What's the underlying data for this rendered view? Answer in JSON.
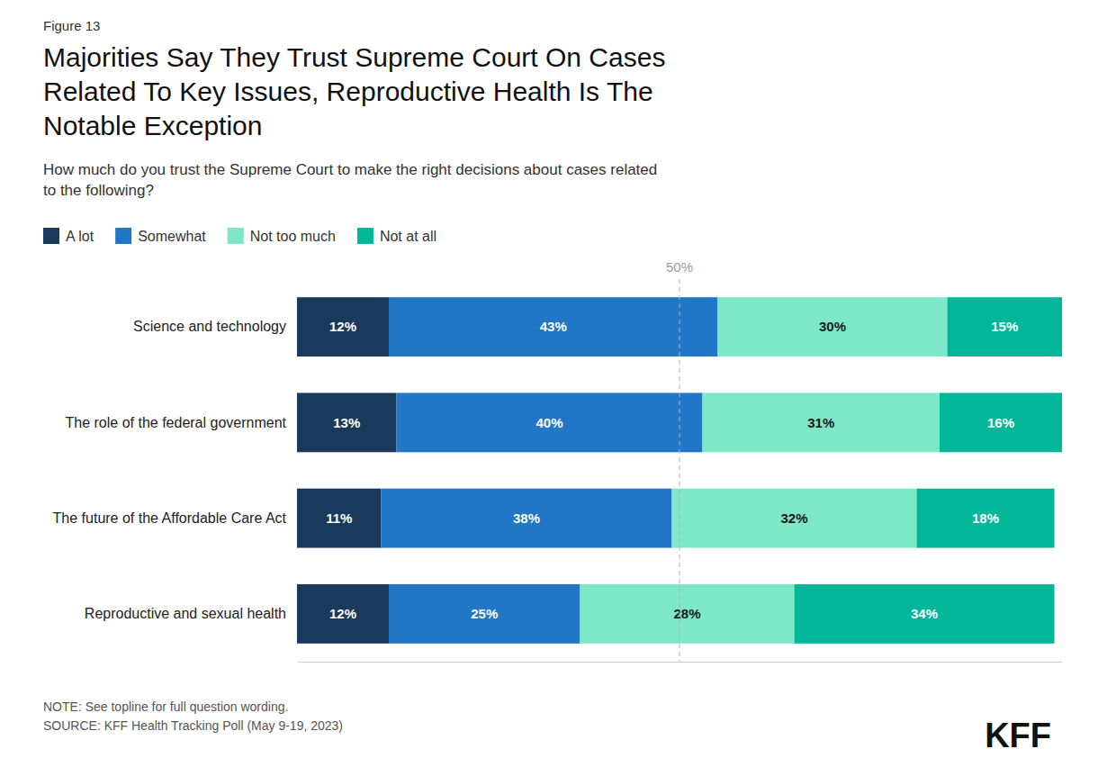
{
  "chart_data": {
    "type": "bar",
    "orientation": "horizontal",
    "stacked": true,
    "data_labels": true,
    "figure_label": "Figure 13",
    "title": "Majorities Say They Trust Supreme Court On Cases\nRelated To Key Issues, Reproductive Health Is The\nNotable Exception",
    "subtitle": "How much do you trust the Supreme Court to make the right decisions about cases related\nto the following?",
    "categories": [
      "Science and technology",
      "The role of the federal government",
      "The future of the Affordable Care Act",
      "Reproductive and sexual health"
    ],
    "series": [
      {
        "name": "A lot",
        "color": "#1a3a5c",
        "values": [
          12,
          13,
          11,
          12
        ],
        "value_labels": [
          "12%",
          "13%",
          "11%",
          "12%"
        ]
      },
      {
        "name": "Somewhat",
        "color": "#2176c7",
        "values": [
          43,
          40,
          38,
          25
        ],
        "value_labels": [
          "43%",
          "40%",
          "38%",
          "25%"
        ]
      },
      {
        "name": "Not too much",
        "color": "#7de8c8",
        "values": [
          30,
          31,
          32,
          28
        ],
        "value_labels": [
          "30%",
          "31%",
          "32%",
          "28%"
        ]
      },
      {
        "name": "Not at all",
        "color": "#00b899",
        "values": [
          15,
          16,
          18,
          34
        ],
        "value_labels": [
          "15%",
          "16%",
          "18%",
          "34%"
        ]
      }
    ],
    "xlim": [
      0,
      100
    ],
    "tick_labels": "y",
    "grid": false,
    "legend": "top-left",
    "annotations": [
      {
        "x": 50,
        "text": "50%"
      }
    ],
    "note": "NOTE: See topline for full question wording.\nSOURCE: KFF Health Tracking Poll (May 9-19, 2023)",
    "logo": "KFF"
  }
}
